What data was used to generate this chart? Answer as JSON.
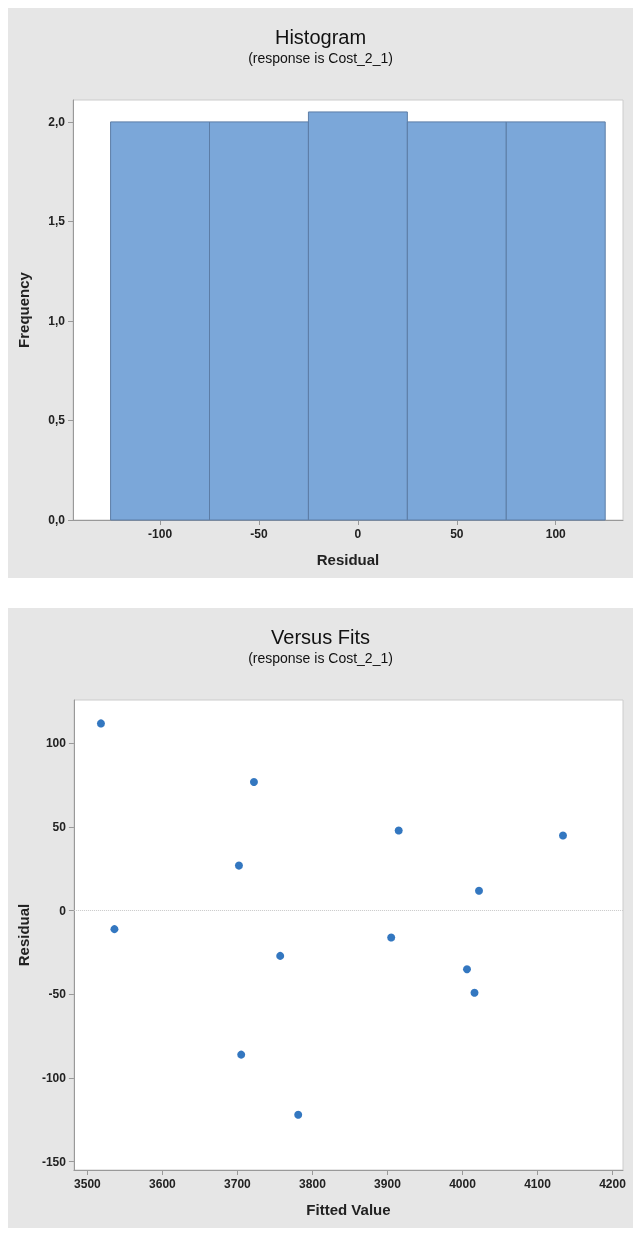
{
  "chart_data": [
    {
      "type": "histogram",
      "title": "Histogram",
      "subtitle": "(response is Cost_2_1)",
      "xlabel": "Residual",
      "ylabel": "Frequency",
      "bins": [
        -125,
        -75,
        -25,
        25,
        75,
        125
      ],
      "values": [
        2,
        2,
        2.05,
        2,
        2
      ],
      "color": "#7ba7d9",
      "xlim": [
        -144,
        134
      ],
      "xticks": [
        -100,
        -50,
        0,
        50,
        100
      ],
      "ylim": [
        0,
        2.11
      ],
      "yticks": [
        {
          "value": 0,
          "label": "0,0"
        },
        {
          "value": 0.5,
          "label": "0,5"
        },
        {
          "value": 1,
          "label": "1,0"
        },
        {
          "value": 1.5,
          "label": "1,5"
        },
        {
          "value": 2,
          "label": "2,0"
        }
      ],
      "grid": false
    },
    {
      "type": "scatter",
      "title": "Versus Fits",
      "subtitle": "(response is Cost_2_1)",
      "xlabel": "Fitted Value",
      "ylabel": "Residual",
      "x": [
        3518,
        3536,
        3702,
        3705,
        3722,
        3757,
        3781,
        3905,
        3915,
        4006,
        4016,
        4022,
        4134
      ],
      "values": [
        112,
        -11,
        27,
        -86,
        77,
        -27,
        -122,
        -16,
        48,
        -35,
        -49,
        12,
        45
      ],
      "color": "#0055b0",
      "marker": "circle",
      "xlim": [
        3482,
        4214
      ],
      "xticks": [
        3500,
        3600,
        3700,
        3800,
        3900,
        4000,
        4100,
        4200
      ],
      "ylim": [
        -155,
        126
      ],
      "yticks": [
        -150,
        -100,
        -50,
        0,
        50,
        100
      ],
      "ref_lines": [
        {
          "axis": "y",
          "value": 0,
          "color": "#c8c8c8",
          "line_style": "dotted"
        }
      ],
      "grid": false
    }
  ]
}
